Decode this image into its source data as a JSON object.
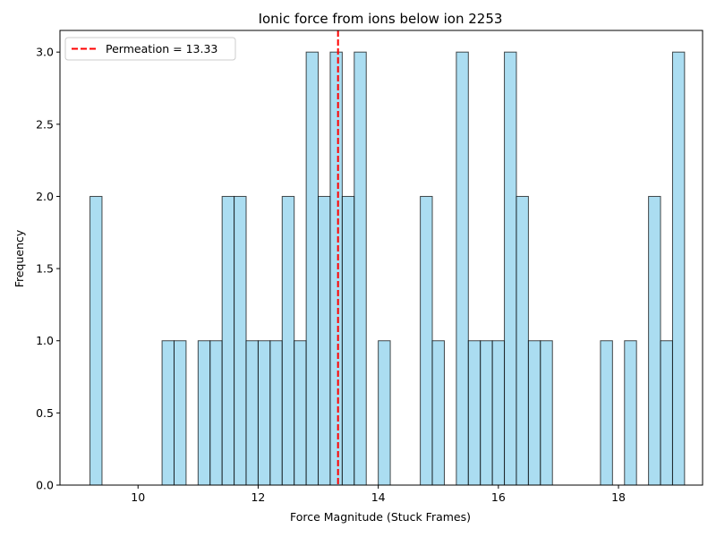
{
  "chart_data": {
    "type": "bar",
    "title": "Ionic force from ions below ion 2253",
    "xlabel": "Force Magnitude (Stuck Frames)",
    "ylabel": "Frequency",
    "xlim": [
      8.7,
      19.4
    ],
    "ylim": [
      0,
      3.15
    ],
    "xticks": [
      10,
      12,
      14,
      16,
      18
    ],
    "yticks": [
      0.0,
      0.5,
      1.0,
      1.5,
      2.0,
      2.5,
      3.0
    ],
    "xtick_labels": [
      "10",
      "12",
      "14",
      "16",
      "18"
    ],
    "ytick_labels": [
      "0.0",
      "0.5",
      "1.0",
      "1.5",
      "2.0",
      "2.5",
      "3.0"
    ],
    "bin_width": 0.2,
    "bins": [
      {
        "start": 9.2,
        "count": 2
      },
      {
        "start": 10.4,
        "count": 1
      },
      {
        "start": 10.6,
        "count": 1
      },
      {
        "start": 11.0,
        "count": 1
      },
      {
        "start": 11.2,
        "count": 1
      },
      {
        "start": 11.4,
        "count": 2
      },
      {
        "start": 11.6,
        "count": 2
      },
      {
        "start": 11.8,
        "count": 1
      },
      {
        "start": 12.0,
        "count": 1
      },
      {
        "start": 12.2,
        "count": 1
      },
      {
        "start": 12.4,
        "count": 2
      },
      {
        "start": 12.6,
        "count": 1
      },
      {
        "start": 12.8,
        "count": 3
      },
      {
        "start": 13.0,
        "count": 2
      },
      {
        "start": 13.2,
        "count": 3
      },
      {
        "start": 13.4,
        "count": 2
      },
      {
        "start": 13.6,
        "count": 3
      },
      {
        "start": 14.0,
        "count": 1
      },
      {
        "start": 14.7,
        "count": 2
      },
      {
        "start": 14.9,
        "count": 1
      },
      {
        "start": 15.3,
        "count": 3
      },
      {
        "start": 15.5,
        "count": 1
      },
      {
        "start": 15.7,
        "count": 1
      },
      {
        "start": 15.9,
        "count": 1
      },
      {
        "start": 16.1,
        "count": 3
      },
      {
        "start": 16.3,
        "count": 2
      },
      {
        "start": 16.5,
        "count": 1
      },
      {
        "start": 16.7,
        "count": 1
      },
      {
        "start": 17.7,
        "count": 1
      },
      {
        "start": 18.1,
        "count": 1
      },
      {
        "start": 18.5,
        "count": 2
      },
      {
        "start": 18.7,
        "count": 1
      },
      {
        "start": 18.9,
        "count": 3
      }
    ],
    "reference_line": {
      "x": 13.33,
      "label": "Permeation = 13.33",
      "color": "#ff0000",
      "style": "dashed"
    },
    "bar_color": "#87ceeb",
    "bar_edge_color": "#000000",
    "legend": {
      "position": "top-left",
      "entries": [
        "Permeation = 13.33"
      ]
    },
    "grid": false
  }
}
